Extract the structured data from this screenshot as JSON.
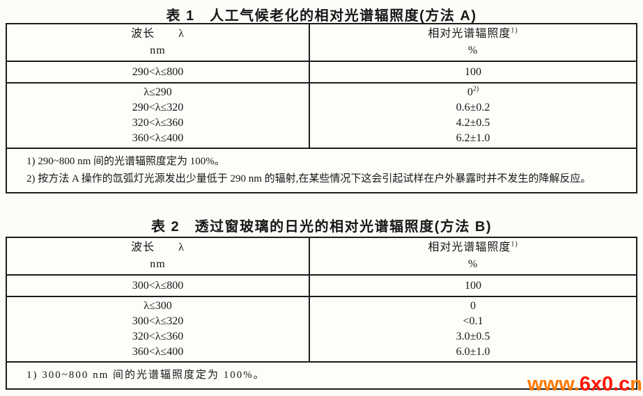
{
  "document": {
    "background_color": "#fcfcf9",
    "border_color": "#1c1c1c",
    "text_color": "#161616"
  },
  "table1": {
    "title": "表 1　人工气候老化的相对光谱辐照度(方法 A)",
    "header": {
      "wavelength_label": "波长　　λ",
      "wavelength_unit": "nm",
      "irradiance_label": "相对光谱辐照度",
      "irradiance_superscript": "1)",
      "irradiance_unit": "%"
    },
    "reference_row": {
      "range": "290<λ≤800",
      "value": "100"
    },
    "rows": [
      {
        "range": "λ≤290",
        "value": "0",
        "superscript": "2)"
      },
      {
        "range": "290<λ≤320",
        "value": "0.6±0.2"
      },
      {
        "range": "320<λ≤360",
        "value": "4.2±0.5"
      },
      {
        "range": "360<λ≤400",
        "value": "6.2±1.0"
      }
    ],
    "footnotes": [
      "1) 290~800 nm 间的光谱辐照度定为 100%。",
      "2) 按方法 A 操作的氙弧灯光源发出少量低于 290 nm 的辐射,在某些情况下这会引起试样在户外暴露时并不发生的降解反应。"
    ]
  },
  "table2": {
    "title": "表 2　透过窗玻璃的日光的相对光谱辐照度(方法 B)",
    "header": {
      "wavelength_label": "波长　　λ",
      "wavelength_unit": "nm",
      "irradiance_label": "相对光谱辐照度",
      "irradiance_superscript": "1)",
      "irradiance_unit": "%"
    },
    "reference_row": {
      "range": "300<λ≤800",
      "value": "100"
    },
    "rows": [
      {
        "range": "λ≤300",
        "value": "0"
      },
      {
        "range": "300<λ≤320",
        "value": "<0.1"
      },
      {
        "range": "320<λ≤360",
        "value": "3.0±0.5"
      },
      {
        "range": "360<λ≤400",
        "value": "6.0±1.0"
      }
    ],
    "footnotes": [
      "1) 300~800 nm 间的光谱辐照度定为 100%。"
    ]
  },
  "watermark": {
    "segments": [
      {
        "text": "www.",
        "color": "#ff7b00"
      },
      {
        "text": "6x0.c",
        "color": "#ff1400"
      },
      {
        "text": "n",
        "color": "#ff7b00"
      }
    ]
  }
}
